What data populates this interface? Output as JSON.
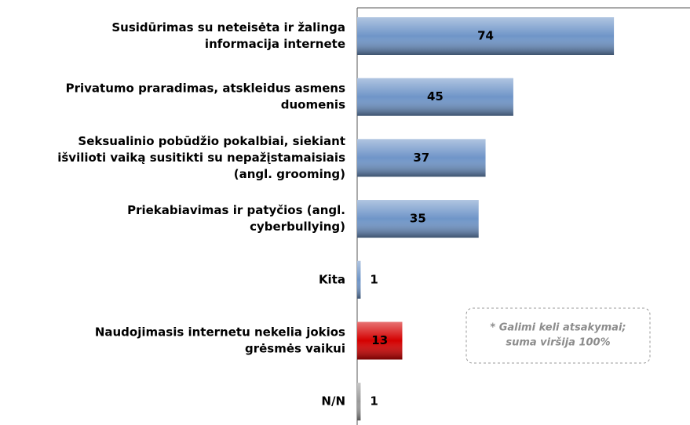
{
  "chart_data": {
    "type": "barh",
    "categories": [
      [
        "Susidūrimas su neteisėta ir žalinga",
        "informacija internete"
      ],
      [
        "Privatumo praradimas, atskleidus asmens",
        "duomenis"
      ],
      [
        "Seksualinio pobūdžio pokalbiai, siekiant",
        "išvilioti vaiką susitikti su nepažįstamaisiais",
        "(angl. grooming)"
      ],
      [
        "Priekabiavimas ir patyčios (angl.",
        "cyberbullying)"
      ],
      [
        "Kita"
      ],
      [
        "Naudojimasis internetu nekelia jokios",
        "grėsmės vaikui"
      ],
      [
        "N/N"
      ]
    ],
    "values": [
      74,
      45,
      37,
      35,
      1,
      13,
      1
    ],
    "colors": [
      "#6f95c8",
      "#6f95c8",
      "#6f95c8",
      "#6f95c8",
      "#6f95c8",
      "#d40000",
      "#9a9a9a"
    ],
    "note": [
      "* Galimi keli atsakymai;",
      "suma viršija 100%"
    ]
  }
}
